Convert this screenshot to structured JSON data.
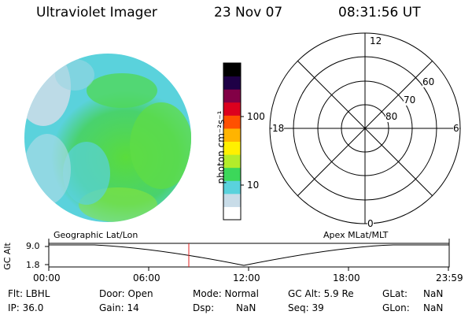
{
  "header": {
    "instrument": "Ultraviolet Imager",
    "date": "23 Nov 07",
    "time": "08:31:56 UT"
  },
  "colorbar": {
    "unit": "photon cm⁻²s⁻¹",
    "ticks": [
      "100",
      "10"
    ],
    "colors": [
      "#ffffff",
      "#c8dce8",
      "#5ad2dc",
      "#3cd75a",
      "#b4ec2a",
      "#fff000",
      "#ffb400",
      "#ff5000",
      "#dc001e",
      "#820046",
      "#1e0046",
      "#000000"
    ]
  },
  "polar": {
    "labels": {
      "top": "12",
      "bottom": "0",
      "left": "18",
      "right": "6"
    },
    "rings": [
      "60",
      "70",
      "80"
    ]
  },
  "timeline": {
    "y_axis_label": "GC Alt",
    "y_ticks": [
      "9.0",
      "1.8"
    ],
    "left_title": "Geographic Lat/Lon",
    "right_title": "Apex MLat/MLT",
    "x_ticks": [
      "00:00",
      "06:00",
      "12:00",
      "18:00",
      "23:59"
    ],
    "marker_color": "#e02020"
  },
  "info": {
    "flt": "Flt: LBHL",
    "ip": "IP: 36.0",
    "door": "Door: Open",
    "gain": "Gain: 14",
    "mode": "Mode: Normal",
    "dsp_label": "Dsp:",
    "dsp_value": "NaN",
    "gc_alt": "GC Alt: 5.9 Re",
    "seq": "Seq: 39",
    "glat_label": "GLat:",
    "glat_value": "NaN",
    "glon_label": "GLon:",
    "glon_value": "NaN"
  }
}
